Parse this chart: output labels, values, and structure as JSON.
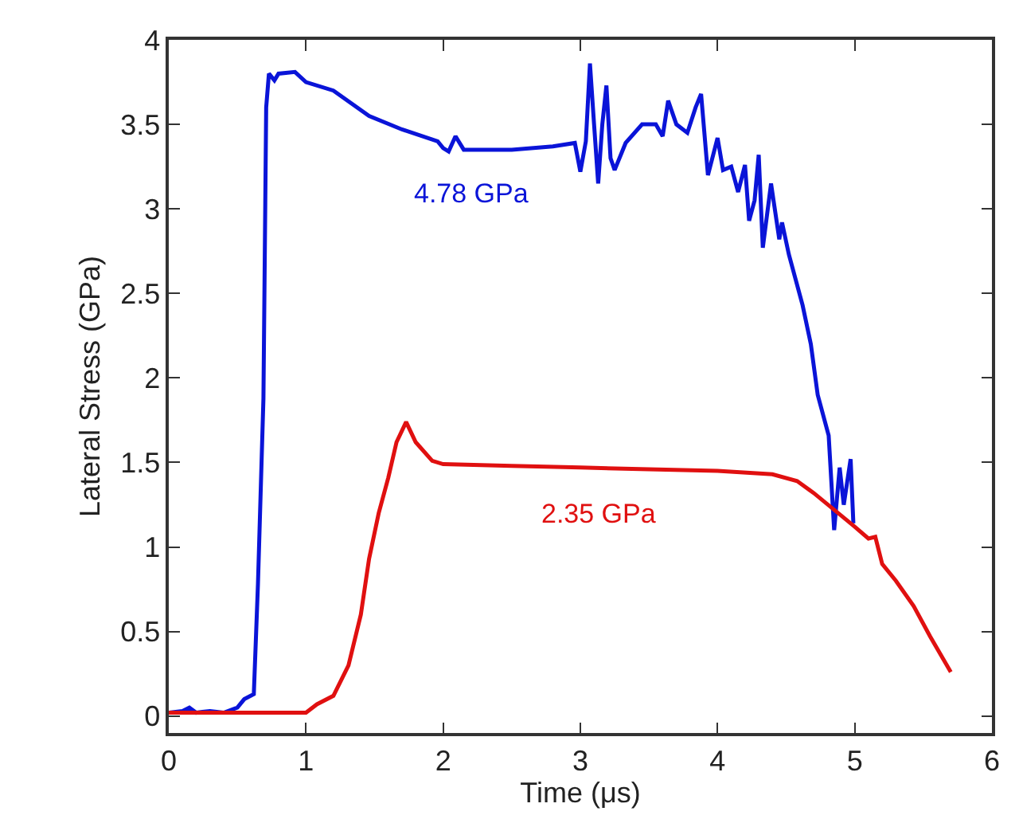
{
  "chart_data": {
    "type": "line",
    "xlabel": "Time (μs)",
    "ylabel": "Lateral Stress (GPa)",
    "xlim": [
      0,
      6
    ],
    "xticks": [
      0,
      1,
      2,
      3,
      4,
      5,
      6
    ],
    "ylim": [
      -0.1,
      4
    ],
    "yticks": [
      0,
      0.5,
      1,
      1.5,
      2,
      2.5,
      3,
      3.5,
      4
    ],
    "legend": false,
    "marker": "none",
    "line_style": "solid",
    "series": [
      {
        "name": "4.78 GPa",
        "color": "#0a14d8",
        "x": [
          0,
          0.1,
          0.15,
          0.2,
          0.3,
          0.4,
          0.5,
          0.55,
          0.62,
          0.65,
          0.69,
          0.71,
          0.73,
          0.77,
          0.8,
          0.92,
          1.0,
          1.2,
          1.46,
          1.7,
          1.96,
          2.0,
          2.04,
          2.09,
          2.15,
          2.5,
          2.8,
          2.96,
          3.0,
          3.04,
          3.07,
          3.1,
          3.13,
          3.16,
          3.19,
          3.22,
          3.25,
          3.33,
          3.45,
          3.55,
          3.6,
          3.64,
          3.7,
          3.78,
          3.84,
          3.88,
          3.93,
          4.0,
          4.04,
          4.1,
          4.15,
          4.2,
          4.23,
          4.27,
          4.3,
          4.33,
          4.39,
          4.45,
          4.47,
          4.52,
          4.62,
          4.68,
          4.73,
          4.81,
          4.85,
          4.89,
          4.92,
          4.97,
          4.99
        ],
        "values": [
          0.02,
          0.03,
          0.05,
          0.02,
          0.03,
          0.02,
          0.05,
          0.1,
          0.13,
          0.78,
          1.88,
          3.6,
          3.8,
          3.76,
          3.8,
          3.81,
          3.75,
          3.7,
          3.55,
          3.47,
          3.4,
          3.36,
          3.34,
          3.43,
          3.35,
          3.35,
          3.37,
          3.39,
          3.22,
          3.4,
          3.86,
          3.5,
          3.15,
          3.5,
          3.73,
          3.3,
          3.23,
          3.39,
          3.5,
          3.5,
          3.43,
          3.64,
          3.5,
          3.45,
          3.6,
          3.68,
          3.2,
          3.42,
          3.23,
          3.25,
          3.1,
          3.26,
          2.93,
          3.05,
          3.32,
          2.77,
          3.15,
          2.82,
          2.92,
          2.73,
          2.43,
          2.2,
          1.9,
          1.66,
          1.1,
          1.47,
          1.25,
          1.52,
          1.14
        ]
      },
      {
        "name": "2.35 GPa",
        "color": "#e01010",
        "x": [
          0,
          0.5,
          1.0,
          1.08,
          1.2,
          1.31,
          1.4,
          1.46,
          1.53,
          1.6,
          1.66,
          1.73,
          1.8,
          1.92,
          2.0,
          2.5,
          3.0,
          3.5,
          4.0,
          4.4,
          4.58,
          4.7,
          4.85,
          5.0,
          5.1,
          5.15,
          5.2,
          5.3,
          5.43,
          5.55,
          5.7
        ],
        "values": [
          0.02,
          0.02,
          0.02,
          0.07,
          0.12,
          0.3,
          0.6,
          0.93,
          1.2,
          1.41,
          1.62,
          1.74,
          1.62,
          1.51,
          1.49,
          1.48,
          1.47,
          1.46,
          1.45,
          1.43,
          1.39,
          1.32,
          1.22,
          1.12,
          1.05,
          1.06,
          0.9,
          0.8,
          0.65,
          0.47,
          0.26
        ]
      }
    ]
  }
}
